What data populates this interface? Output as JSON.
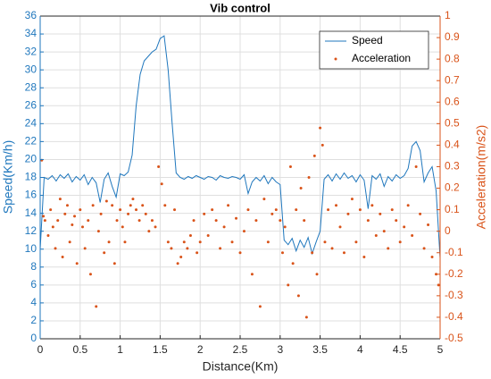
{
  "chart_data": {
    "type": "line",
    "title": "Vib control",
    "xlabel": "Distance(Km)",
    "ylabel": "Speed(Km/h)",
    "y2label": "Acceleration(m/s2)",
    "xlim": [
      0,
      5
    ],
    "xticks": [
      0,
      0.5,
      1,
      1.5,
      2,
      2.5,
      3,
      3.5,
      4,
      4.5,
      5
    ],
    "ylim": [
      0,
      36
    ],
    "yticks": [
      0,
      2,
      4,
      6,
      8,
      10,
      12,
      14,
      16,
      18,
      20,
      22,
      24,
      26,
      28,
      30,
      32,
      34,
      36
    ],
    "y2lim": [
      -0.5,
      1
    ],
    "y2ticks": [
      -0.5,
      -0.4,
      -0.3,
      -0.2,
      -0.1,
      0,
      0.1,
      0.2,
      0.3,
      0.4,
      0.5,
      0.6,
      0.7,
      0.8,
      0.9,
      1
    ],
    "grid": true,
    "legend": "northeast",
    "series": [
      {
        "name": "Speed",
        "color": "#1f77bd",
        "type": "line",
        "x": [
          0,
          0.05,
          0.1,
          0.15,
          0.2,
          0.25,
          0.3,
          0.35,
          0.4,
          0.45,
          0.5,
          0.55,
          0.6,
          0.65,
          0.7,
          0.75,
          0.8,
          0.85,
          0.9,
          0.95,
          1,
          1.05,
          1.1,
          1.15,
          1.2,
          1.25,
          1.3,
          1.35,
          1.4,
          1.45,
          1.5,
          1.55,
          1.6,
          1.65,
          1.7,
          1.75,
          1.8,
          1.85,
          1.9,
          1.95,
          2,
          2.05,
          2.1,
          2.15,
          2.2,
          2.25,
          2.3,
          2.35,
          2.4,
          2.45,
          2.5,
          2.55,
          2.6,
          2.65,
          2.7,
          2.75,
          2.8,
          2.85,
          2.9,
          2.95,
          3,
          3.05,
          3.1,
          3.15,
          3.2,
          3.25,
          3.3,
          3.35,
          3.4,
          3.45,
          3.5,
          3.55,
          3.6,
          3.65,
          3.7,
          3.75,
          3.8,
          3.85,
          3.9,
          3.95,
          4,
          4.05,
          4.1,
          4.15,
          4.2,
          4.25,
          4.3,
          4.35,
          4.4,
          4.45,
          4.5,
          4.55,
          4.6,
          4.65,
          4.7,
          4.75,
          4.8,
          4.85,
          4.9,
          4.95,
          5
        ],
        "values": [
          10,
          18,
          17.8,
          18.2,
          17.6,
          18.3,
          17.9,
          18.4,
          17.5,
          18.1,
          17.7,
          18.3,
          17.2,
          18,
          17.4,
          15.2,
          17.8,
          18.5,
          17,
          15.8,
          18.4,
          18.2,
          18.6,
          20.5,
          26,
          29.5,
          31,
          31.5,
          32,
          32.3,
          33.5,
          33.8,
          30,
          24,
          18.5,
          18,
          17.8,
          18.1,
          17.9,
          18.2,
          18,
          17.8,
          18.1,
          18,
          17.7,
          18.2,
          18,
          17.9,
          18.1,
          18,
          17.8,
          18.3,
          16.2,
          17.5,
          18,
          17.6,
          18.2,
          17.3,
          18,
          17.5,
          17.2,
          11,
          10.5,
          11.2,
          9.8,
          11,
          10.2,
          11.3,
          9.5,
          10.8,
          12,
          17.8,
          18.3,
          17.6,
          18.4,
          17.8,
          18.5,
          17.9,
          18.2,
          17.5,
          18.3,
          17.7,
          14.5,
          18.2,
          17.8,
          18.4,
          17,
          18.1,
          17.6,
          18.3,
          17.9,
          18.2,
          19,
          21.5,
          22,
          21,
          17.5,
          18.5,
          19.2,
          16.5,
          9
        ]
      },
      {
        "name": "Acceleration",
        "color": "#d95319",
        "type": "scatter",
        "axis": "y2",
        "x": [
          0.02,
          0.04,
          0.06,
          0.1,
          0.13,
          0.16,
          0.19,
          0.22,
          0.25,
          0.28,
          0.31,
          0.34,
          0.37,
          0.4,
          0.43,
          0.46,
          0.5,
          0.53,
          0.56,
          0.6,
          0.63,
          0.66,
          0.7,
          0.73,
          0.76,
          0.8,
          0.83,
          0.86,
          0.9,
          0.93,
          0.96,
          1,
          1.03,
          1.06,
          1.1,
          1.13,
          1.16,
          1.2,
          1.24,
          1.28,
          1.32,
          1.36,
          1.4,
          1.44,
          1.48,
          1.52,
          1.56,
          1.6,
          1.64,
          1.68,
          1.72,
          1.76,
          1.8,
          1.84,
          1.88,
          1.92,
          1.96,
          2,
          2.05,
          2.1,
          2.15,
          2.2,
          2.25,
          2.3,
          2.35,
          2.4,
          2.45,
          2.5,
          2.55,
          2.6,
          2.65,
          2.7,
          2.75,
          2.8,
          2.85,
          2.9,
          2.95,
          3,
          3.03,
          3.06,
          3.1,
          3.13,
          3.16,
          3.2,
          3.23,
          3.26,
          3.3,
          3.33,
          3.36,
          3.4,
          3.43,
          3.46,
          3.5,
          3.53,
          3.56,
          3.6,
          3.65,
          3.7,
          3.75,
          3.8,
          3.85,
          3.9,
          3.95,
          4,
          4.05,
          4.1,
          4.15,
          4.2,
          4.25,
          4.3,
          4.35,
          4.4,
          4.45,
          4.5,
          4.55,
          4.6,
          4.65,
          4.7,
          4.75,
          4.8,
          4.85,
          4.9,
          4.95,
          4.98
        ],
        "values": [
          0.33,
          0.07,
          0.05,
          -0.02,
          0.1,
          0.02,
          -0.08,
          0.05,
          0.15,
          -0.12,
          0.08,
          0.12,
          -0.05,
          0.03,
          0.07,
          -0.15,
          0.1,
          0.02,
          -0.08,
          0.05,
          -0.2,
          0.12,
          -0.35,
          0,
          0.08,
          -0.1,
          0.14,
          -0.05,
          0.12,
          -0.15,
          0.05,
          0.1,
          0.02,
          -0.05,
          0.08,
          0.12,
          0.15,
          0.1,
          0.05,
          0.12,
          0.08,
          0,
          0.05,
          0.02,
          0.3,
          0.22,
          0.12,
          -0.05,
          -0.08,
          0.1,
          -0.15,
          -0.12,
          -0.05,
          -0.08,
          -0.02,
          0.05,
          -0.1,
          -0.05,
          0.08,
          -0.02,
          0.1,
          0.05,
          -0.08,
          0.02,
          0.12,
          -0.05,
          0.06,
          -0.1,
          0,
          0.1,
          -0.2,
          0.05,
          -0.35,
          0.15,
          -0.05,
          0.08,
          0.1,
          0.05,
          -0.1,
          0.02,
          -0.25,
          0.3,
          -0.15,
          0.1,
          -0.3,
          0.2,
          0.05,
          -0.4,
          0.25,
          -0.1,
          0.35,
          -0.2,
          0.48,
          0.4,
          -0.05,
          0.1,
          -0.08,
          0.12,
          0.02,
          -0.1,
          0.08,
          0.15,
          -0.05,
          0.1,
          -0.12,
          0.05,
          0.12,
          -0.02,
          0.08,
          0,
          -0.08,
          0.1,
          0.05,
          -0.05,
          0.02,
          0.12,
          -0.02,
          0.3,
          0.08,
          -0.08,
          0.03,
          -0.12,
          -0.2,
          -0.25
        ]
      }
    ]
  }
}
